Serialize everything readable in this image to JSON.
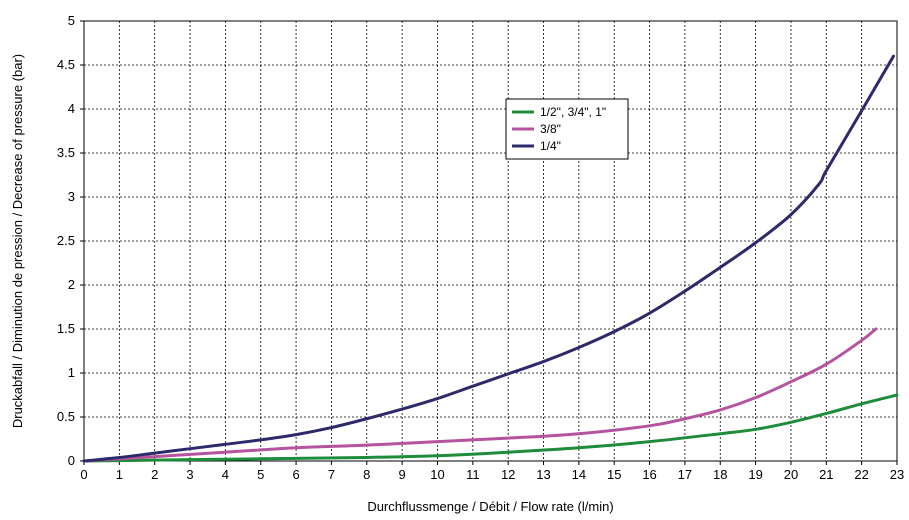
{
  "chart_data": {
    "type": "line",
    "title": "",
    "xlabel": "Durchflussmenge / Débit / Flow rate (l/min)",
    "ylabel": "Druckabfall / Diminution de pression / Decrease of pressure (bar)",
    "xlim": [
      0,
      23
    ],
    "ylim": [
      0,
      5
    ],
    "x_ticks": [
      "0",
      "1",
      "2",
      "3",
      "4",
      "5",
      "6",
      "7",
      "8",
      "9",
      "10",
      "11",
      "12",
      "13",
      "14",
      "15",
      "16",
      "17",
      "18",
      "19",
      "20",
      "21",
      "22",
      "23"
    ],
    "y_ticks": [
      "0",
      "0.5",
      "1",
      "1.5",
      "2",
      "2.5",
      "3",
      "3.5",
      "4",
      "4.5",
      "5"
    ],
    "grid": true,
    "legend_position": "upper-center",
    "series": [
      {
        "name": "1/2\", 3/4\", 1\"",
        "color": "#1e8c3a",
        "x": [
          0,
          2,
          4,
          6,
          8,
          10,
          12,
          14,
          16,
          18,
          19,
          20,
          21,
          22,
          23
        ],
        "y": [
          0,
          0.01,
          0.02,
          0.03,
          0.04,
          0.06,
          0.1,
          0.15,
          0.22,
          0.31,
          0.36,
          0.44,
          0.54,
          0.65,
          0.75
        ]
      },
      {
        "name": "3/8\"",
        "color": "#b5539e",
        "x": [
          0,
          2,
          4,
          6,
          8,
          10,
          12,
          14,
          16,
          17,
          18,
          19,
          20,
          21,
          22,
          22.4
        ],
        "y": [
          0,
          0.05,
          0.1,
          0.15,
          0.18,
          0.22,
          0.26,
          0.31,
          0.4,
          0.48,
          0.58,
          0.72,
          0.9,
          1.1,
          1.37,
          1.5
        ]
      },
      {
        "name": "1/4\"",
        "color": "#2d2a6b",
        "x": [
          0,
          1,
          2,
          3,
          4,
          5,
          6,
          7,
          8,
          9,
          10,
          11,
          12,
          13,
          14,
          15,
          16,
          17,
          18,
          19,
          20,
          20.8,
          21,
          22,
          22.9
        ],
        "y": [
          0,
          0.04,
          0.09,
          0.14,
          0.19,
          0.24,
          0.3,
          0.38,
          0.48,
          0.59,
          0.71,
          0.85,
          0.99,
          1.13,
          1.29,
          1.47,
          1.68,
          1.93,
          2.2,
          2.48,
          2.8,
          3.15,
          3.3,
          3.98,
          4.6
        ]
      }
    ]
  }
}
